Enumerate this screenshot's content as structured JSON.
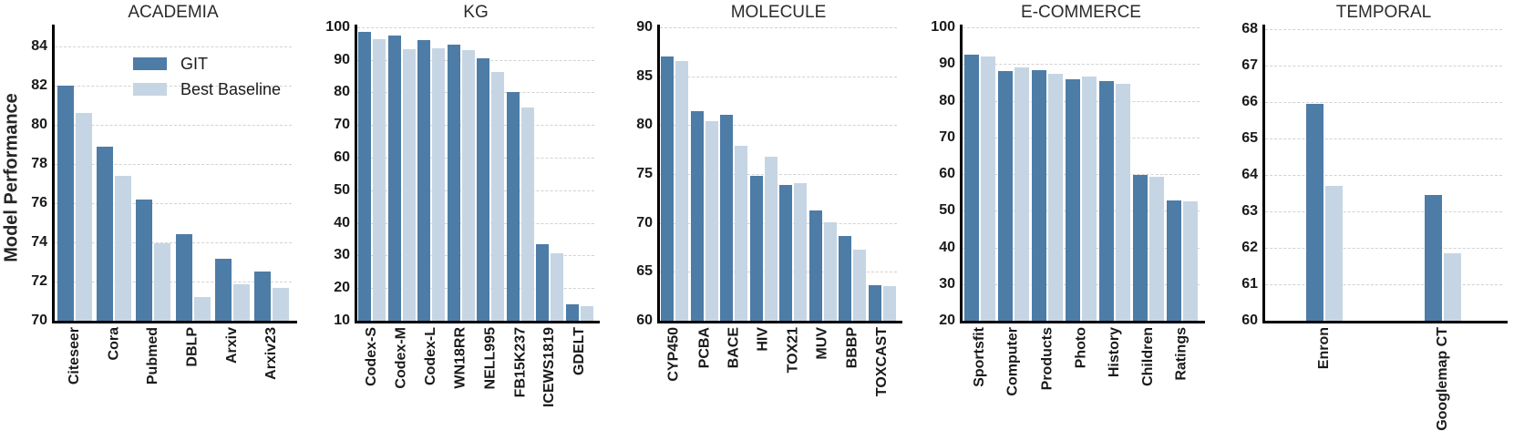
{
  "figure": {
    "ylabel": "Model Performance",
    "background": "#ffffff",
    "axis_color": "#000000",
    "grid_color": "#d2d2d2",
    "tick_color": "#1a1a1a",
    "title_color": "#2b2b2b",
    "legend": {
      "location": "upper area of first subplot",
      "items": [
        {
          "label": "GIT",
          "color": "#4d7ca6"
        },
        {
          "label": "Best Baseline",
          "color": "#c6d5e3"
        }
      ]
    }
  },
  "chart_data": [
    {
      "type": "bar",
      "title": "ACADEMIA",
      "ylabel": "Model Performance",
      "show_legend": true,
      "grid": true,
      "legend_position": "upper center-left inside plot",
      "ylim": [
        70,
        85.05
      ],
      "yticks": [
        70,
        72,
        74,
        76,
        78,
        80,
        82,
        84
      ],
      "categories": [
        "Citeseer",
        "Cora",
        "Pubmed",
        "DBLP",
        "Arxiv",
        "Arxiv23"
      ],
      "series": [
        {
          "name": "GIT",
          "values": [
            82.0,
            78.85,
            76.2,
            74.4,
            73.15,
            72.5
          ]
        },
        {
          "name": "Best Baseline",
          "values": [
            80.6,
            77.4,
            73.95,
            71.2,
            71.85,
            71.65
          ]
        }
      ]
    },
    {
      "type": "bar",
      "title": "KG",
      "ylabel": "",
      "show_legend": false,
      "grid": true,
      "ylim": [
        10,
        100.5
      ],
      "yticks": [
        10,
        20,
        30,
        40,
        50,
        60,
        70,
        80,
        90,
        100
      ],
      "categories": [
        "Codex-S",
        "Codex-M",
        "Codex-L",
        "WN18RR",
        "NELL995",
        "FB15K237",
        "ICEWS1819",
        "GDELT"
      ],
      "series": [
        {
          "name": "GIT",
          "values": [
            98.5,
            97.3,
            96.0,
            94.6,
            90.5,
            80.0,
            33.4,
            15.0
          ]
        },
        {
          "name": "Best Baseline",
          "values": [
            96.4,
            93.2,
            93.5,
            93.0,
            86.2,
            75.4,
            30.6,
            14.5
          ]
        }
      ]
    },
    {
      "type": "bar",
      "title": "MOLECULE",
      "ylabel": "",
      "show_legend": false,
      "grid": true,
      "ylim": [
        60,
        90.2
      ],
      "yticks": [
        60,
        65,
        70,
        75,
        80,
        85,
        90
      ],
      "categories": [
        "CYP450",
        "PCBA",
        "BACE",
        "HIV",
        "TOX21",
        "MUV",
        "BBBP",
        "TOXCAST"
      ],
      "series": [
        {
          "name": "GIT",
          "values": [
            87.0,
            81.4,
            81.1,
            74.8,
            73.9,
            71.3,
            68.7,
            63.6
          ]
        },
        {
          "name": "Best Baseline",
          "values": [
            86.6,
            80.4,
            77.9,
            76.8,
            74.1,
            70.1,
            67.3,
            63.5
          ]
        }
      ]
    },
    {
      "type": "bar",
      "title": "E-COMMERCE",
      "ylabel": "",
      "show_legend": false,
      "grid": true,
      "ylim": [
        20,
        100.5
      ],
      "yticks": [
        20,
        30,
        40,
        50,
        60,
        70,
        80,
        90,
        100
      ],
      "categories": [
        "Sportsfit",
        "Computer",
        "Products",
        "Photo",
        "History",
        "Children",
        "Ratings"
      ],
      "series": [
        {
          "name": "GIT",
          "values": [
            92.5,
            88.2,
            88.4,
            85.8,
            85.3,
            59.7,
            52.8
          ]
        },
        {
          "name": "Best Baseline",
          "values": [
            92.1,
            89.1,
            87.3,
            86.7,
            84.7,
            59.2,
            52.6
          ]
        }
      ]
    },
    {
      "type": "bar",
      "title": "TEMPORAL",
      "ylabel": "",
      "show_legend": false,
      "grid": true,
      "ylim": [
        60,
        68.1
      ],
      "yticks": [
        60,
        61,
        62,
        63,
        64,
        65,
        66,
        67,
        68
      ],
      "categories": [
        "Enron",
        "Googlemap CT"
      ],
      "series": [
        {
          "name": "GIT",
          "values": [
            65.95,
            63.45
          ]
        },
        {
          "name": "Best Baseline",
          "values": [
            63.7,
            61.85
          ]
        }
      ]
    }
  ]
}
